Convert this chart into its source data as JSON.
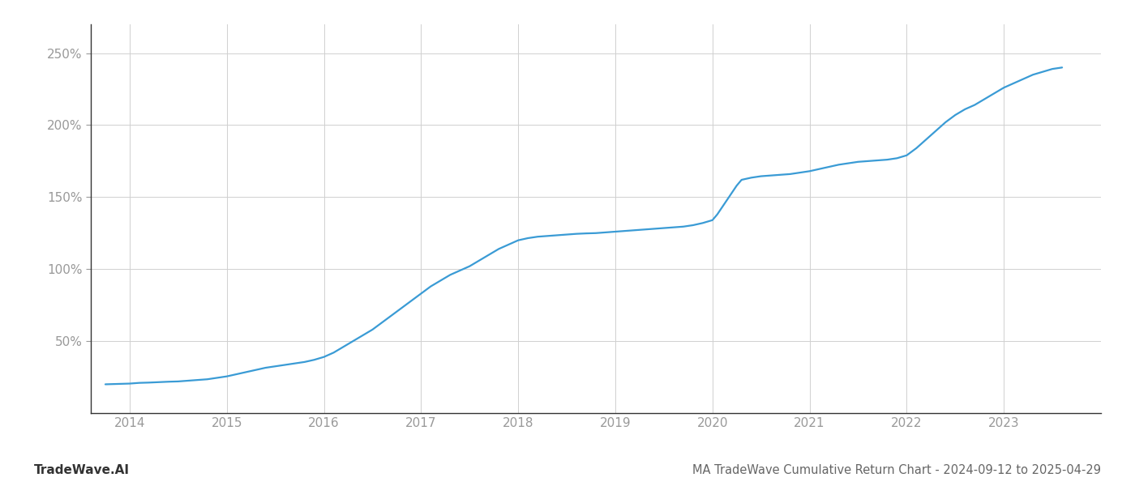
{
  "title": "MA TradeWave Cumulative Return Chart - 2024-09-12 to 2025-04-29",
  "watermark": "TradeWave.AI",
  "line_color": "#3a9bd5",
  "background_color": "#ffffff",
  "grid_color": "#d0d0d0",
  "x_years": [
    2014,
    2015,
    2016,
    2017,
    2018,
    2019,
    2020,
    2021,
    2022,
    2023
  ],
  "data_points": [
    [
      2013.75,
      20.0
    ],
    [
      2013.85,
      20.2
    ],
    [
      2014.0,
      20.5
    ],
    [
      2014.1,
      21.0
    ],
    [
      2014.2,
      21.2
    ],
    [
      2014.3,
      21.5
    ],
    [
      2014.4,
      21.8
    ],
    [
      2014.5,
      22.0
    ],
    [
      2014.6,
      22.5
    ],
    [
      2014.7,
      23.0
    ],
    [
      2014.8,
      23.5
    ],
    [
      2014.9,
      24.5
    ],
    [
      2015.0,
      25.5
    ],
    [
      2015.1,
      27.0
    ],
    [
      2015.2,
      28.5
    ],
    [
      2015.3,
      30.0
    ],
    [
      2015.4,
      31.5
    ],
    [
      2015.5,
      32.5
    ],
    [
      2015.6,
      33.5
    ],
    [
      2015.7,
      34.5
    ],
    [
      2015.8,
      35.5
    ],
    [
      2015.9,
      37.0
    ],
    [
      2016.0,
      39.0
    ],
    [
      2016.1,
      42.0
    ],
    [
      2016.2,
      46.0
    ],
    [
      2016.3,
      50.0
    ],
    [
      2016.4,
      54.0
    ],
    [
      2016.5,
      58.0
    ],
    [
      2016.6,
      63.0
    ],
    [
      2016.7,
      68.0
    ],
    [
      2016.8,
      73.0
    ],
    [
      2016.9,
      78.0
    ],
    [
      2017.0,
      83.0
    ],
    [
      2017.1,
      88.0
    ],
    [
      2017.2,
      92.0
    ],
    [
      2017.3,
      96.0
    ],
    [
      2017.4,
      99.0
    ],
    [
      2017.5,
      102.0
    ],
    [
      2017.6,
      106.0
    ],
    [
      2017.7,
      110.0
    ],
    [
      2017.8,
      114.0
    ],
    [
      2017.9,
      117.0
    ],
    [
      2018.0,
      120.0
    ],
    [
      2018.1,
      121.5
    ],
    [
      2018.2,
      122.5
    ],
    [
      2018.3,
      123.0
    ],
    [
      2018.4,
      123.5
    ],
    [
      2018.5,
      124.0
    ],
    [
      2018.6,
      124.5
    ],
    [
      2018.7,
      124.8
    ],
    [
      2018.8,
      125.0
    ],
    [
      2018.9,
      125.5
    ],
    [
      2019.0,
      126.0
    ],
    [
      2019.1,
      126.5
    ],
    [
      2019.2,
      127.0
    ],
    [
      2019.3,
      127.5
    ],
    [
      2019.4,
      128.0
    ],
    [
      2019.5,
      128.5
    ],
    [
      2019.6,
      129.0
    ],
    [
      2019.7,
      129.5
    ],
    [
      2019.8,
      130.5
    ],
    [
      2019.9,
      132.0
    ],
    [
      2020.0,
      134.0
    ],
    [
      2020.05,
      138.0
    ],
    [
      2020.1,
      143.0
    ],
    [
      2020.15,
      148.0
    ],
    [
      2020.2,
      153.0
    ],
    [
      2020.25,
      158.0
    ],
    [
      2020.3,
      162.0
    ],
    [
      2020.4,
      163.5
    ],
    [
      2020.5,
      164.5
    ],
    [
      2020.6,
      165.0
    ],
    [
      2020.7,
      165.5
    ],
    [
      2020.8,
      166.0
    ],
    [
      2020.9,
      167.0
    ],
    [
      2021.0,
      168.0
    ],
    [
      2021.1,
      169.5
    ],
    [
      2021.2,
      171.0
    ],
    [
      2021.3,
      172.5
    ],
    [
      2021.4,
      173.5
    ],
    [
      2021.5,
      174.5
    ],
    [
      2021.6,
      175.0
    ],
    [
      2021.7,
      175.5
    ],
    [
      2021.8,
      176.0
    ],
    [
      2021.9,
      177.0
    ],
    [
      2022.0,
      179.0
    ],
    [
      2022.1,
      184.0
    ],
    [
      2022.2,
      190.0
    ],
    [
      2022.3,
      196.0
    ],
    [
      2022.4,
      202.0
    ],
    [
      2022.5,
      207.0
    ],
    [
      2022.6,
      211.0
    ],
    [
      2022.7,
      214.0
    ],
    [
      2022.8,
      218.0
    ],
    [
      2022.9,
      222.0
    ],
    [
      2023.0,
      226.0
    ],
    [
      2023.1,
      229.0
    ],
    [
      2023.2,
      232.0
    ],
    [
      2023.3,
      235.0
    ],
    [
      2023.4,
      237.0
    ],
    [
      2023.5,
      239.0
    ],
    [
      2023.6,
      240.0
    ]
  ],
  "ylim": [
    0,
    270
  ],
  "yticks": [
    50,
    100,
    150,
    200,
    250
  ],
  "ytick_labels": [
    "50%",
    "100%",
    "150%",
    "200%",
    "250%"
  ],
  "title_fontsize": 10.5,
  "watermark_fontsize": 11,
  "tick_fontsize": 11,
  "axis_color": "#999999",
  "spine_color": "#333333"
}
